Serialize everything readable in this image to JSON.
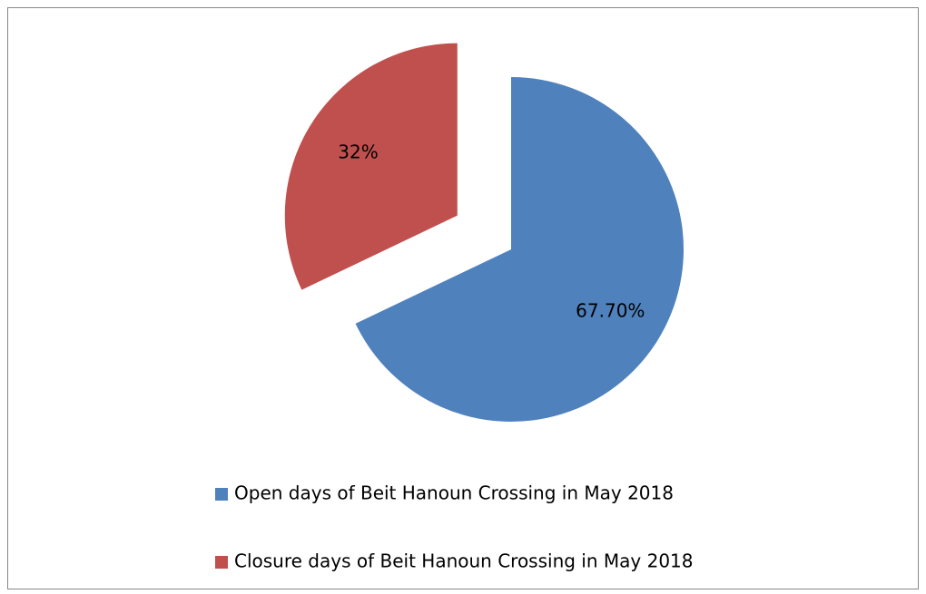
{
  "chart_data": {
    "type": "pie",
    "categories": [
      "Open days of Beit Hanoun Crossing in May 2018",
      "Closure days of Beit Hanoun Crossing in May 2018"
    ],
    "values": [
      67.7,
      32
    ],
    "value_labels": [
      "67.70%",
      "32%"
    ],
    "colors": [
      "#4f81bd",
      "#c0504d"
    ],
    "legend": "bottom"
  }
}
